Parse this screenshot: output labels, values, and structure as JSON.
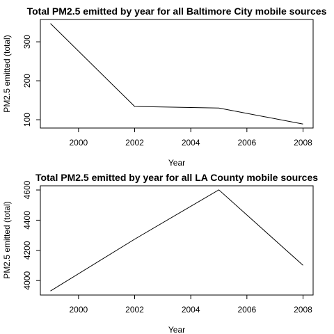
{
  "chart_data": [
    {
      "type": "line",
      "title": "Total PM2.5 emitted by year for all Baltimore City mobile sources",
      "xlabel": "Year",
      "ylabel": "PM2.5 emitted (total)",
      "x": [
        1999,
        2002,
        2005,
        2008
      ],
      "series": [
        {
          "values": [
            347,
            134,
            130,
            89
          ]
        }
      ],
      "xlim": [
        1999,
        2008
      ],
      "ylim": [
        89,
        347
      ],
      "xticks": [
        2000,
        2002,
        2004,
        2006,
        2008
      ],
      "yticks": [
        100,
        200,
        300
      ],
      "grid": false,
      "line_color": "#000000"
    },
    {
      "type": "line",
      "title": "Total PM2.5 emitted by year for all LA County mobile sources",
      "xlabel": "Year",
      "ylabel": "PM2.5 emitted (total)",
      "x": [
        1999,
        2002,
        2005,
        2008
      ],
      "series": [
        {
          "values": [
            3931,
            4274,
            4601,
            4101
          ]
        }
      ],
      "xlim": [
        1999,
        2008
      ],
      "ylim": [
        3931,
        4601
      ],
      "xticks": [
        2000,
        2002,
        2004,
        2006,
        2008
      ],
      "yticks": [
        4000,
        4200,
        4400,
        4600
      ],
      "grid": false,
      "line_color": "#000000"
    }
  ]
}
